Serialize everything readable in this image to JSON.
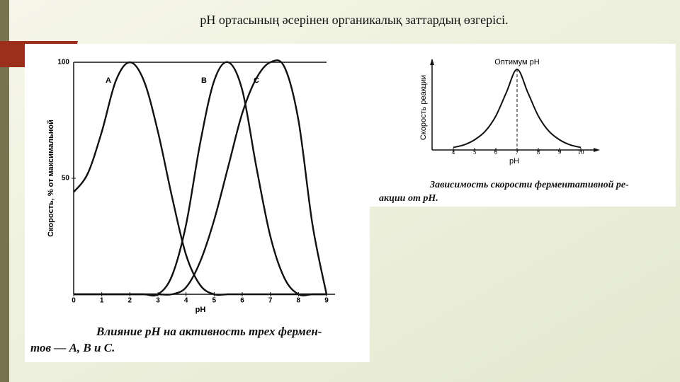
{
  "title": "pH ортасының әсерінен органикалық заттардың өзгерісі.",
  "chart_data": [
    {
      "type": "line",
      "y_label": "Скорость, % от максимальной",
      "x_label": "pH",
      "caption": [
        "Влияние pH на активность трех фермен-",
        "тов — A, B и C."
      ],
      "x": [
        0,
        0.5,
        1,
        1.5,
        2,
        2.5,
        3,
        3.5,
        4,
        4.5,
        5,
        5.5,
        6,
        6.5,
        7,
        7.5,
        8,
        8.5,
        9
      ],
      "series": [
        {
          "name": "A",
          "color": "#111111",
          "values": [
            44,
            52,
            70,
            92,
            100,
            92,
            70,
            42,
            17,
            4,
            0,
            0,
            0,
            0,
            0,
            0,
            0,
            0,
            0
          ]
        },
        {
          "name": "B",
          "color": "#111111",
          "values": [
            0,
            0,
            0,
            0,
            0,
            0,
            0,
            8,
            30,
            65,
            92,
            100,
            88,
            55,
            25,
            7,
            0,
            0,
            0
          ]
        },
        {
          "name": "C",
          "color": "#111111",
          "values": [
            0,
            0,
            0,
            0,
            0,
            0,
            0,
            0,
            3,
            14,
            32,
            55,
            78,
            93,
            100,
            98,
            75,
            30,
            0
          ]
        }
      ],
      "xlim": [
        0,
        9
      ],
      "xticks": [
        0,
        1,
        2,
        3,
        4,
        5,
        6,
        7,
        8,
        9
      ],
      "ylim": [
        0,
        100
      ],
      "yticks": [
        50,
        100
      ]
    },
    {
      "type": "line",
      "y_label": "Скорость реакции",
      "x_label": "pH",
      "annotation": "Оптимум pH",
      "caption": [
        "Зависимость скорости ферментативной ре-",
        "акции от pH."
      ],
      "x": [
        4,
        4.5,
        5,
        5.5,
        6,
        6.5,
        7,
        7.5,
        8,
        8.5,
        9,
        9.5,
        10
      ],
      "series": [
        {
          "name": "rate",
          "color": "#111111",
          "values": [
            3,
            6,
            12,
            22,
            40,
            68,
            95,
            68,
            40,
            22,
            12,
            6,
            3
          ]
        }
      ],
      "xlim": [
        3,
        10.6
      ],
      "xticks": [
        4,
        5,
        6,
        7,
        8,
        9,
        10
      ],
      "ylim": [
        0,
        100
      ]
    }
  ]
}
